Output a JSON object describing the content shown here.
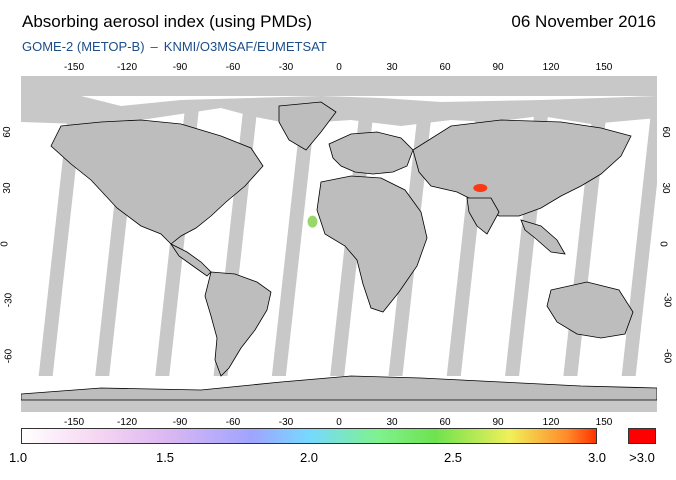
{
  "header": {
    "title": "Absorbing aerosol index (using PMDs)",
    "date": "06 November 2016",
    "instrument": "GOME-2 (METOP-B)",
    "separator": "–",
    "provider": "KNMI/O3MSAF/EUMETSAT"
  },
  "map": {
    "projection": "equirectangular",
    "lon_range": [
      -180,
      180
    ],
    "lat_range": [
      -90,
      90
    ],
    "lon_ticks": [
      "-150",
      "-120",
      "-90",
      "-60",
      "-30",
      "0",
      "30",
      "60",
      "90",
      "120",
      "150"
    ],
    "lat_ticks": [
      "60",
      "30",
      "0",
      "-30",
      "-60"
    ],
    "colors": {
      "no_data_polar": "#c8c8c8",
      "orbit_gap": "#c8c8c8",
      "coastline": "#000000",
      "background": "#ffffff"
    },
    "features": [
      {
        "label": "high aerosol index near Himalaya (>3.0)",
        "lon": 80,
        "lat": 30,
        "value": "above_3"
      },
      {
        "label": "elevated aerosol over West Africa coast",
        "lon": -15,
        "lat": 12,
        "value": "moderate"
      }
    ]
  },
  "colorbar": {
    "labels": [
      "1.0",
      "1.5",
      "2.0",
      "2.5",
      "3.0"
    ],
    "saturation_label": ">3.0",
    "saturation_color": "#ff0000"
  }
}
